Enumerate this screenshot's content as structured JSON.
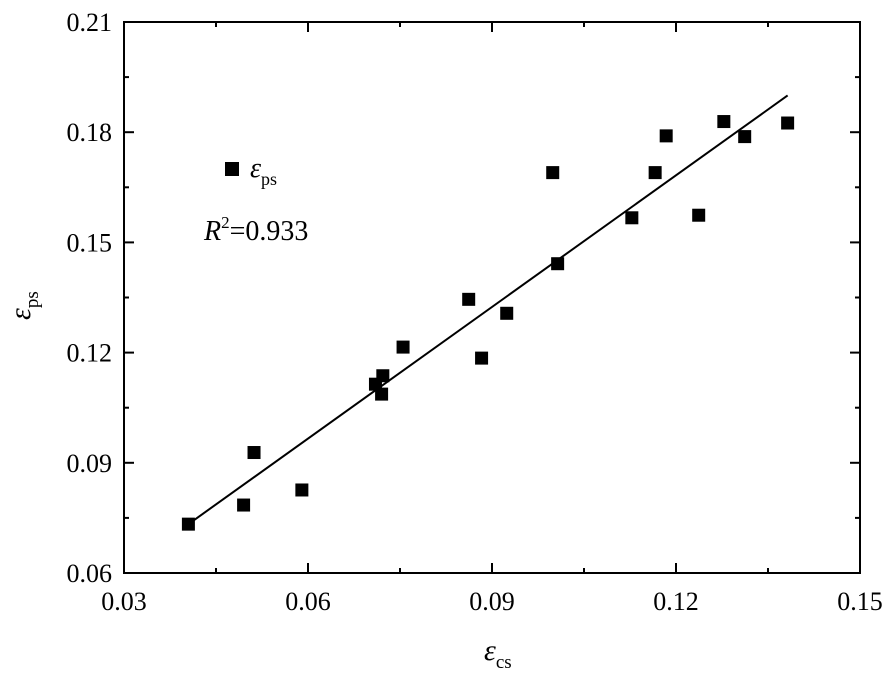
{
  "chart_data": {
    "type": "scatter",
    "xlabel": {
      "symbol": "ε",
      "subscript": "cs"
    },
    "ylabel": {
      "symbol": "ε",
      "subscript": "ps"
    },
    "xlim": [
      0.03,
      0.15
    ],
    "ylim": [
      0.06,
      0.21
    ],
    "x_ticks": [
      "0.03",
      "0.06",
      "0.09",
      "0.12",
      "0.15"
    ],
    "y_ticks": [
      "0.06",
      "0.09",
      "0.12",
      "0.15",
      "0.18",
      "0.21"
    ],
    "legend": {
      "symbol": "ε",
      "subscript": "ps",
      "position": "top-left"
    },
    "annotation": {
      "label": "R",
      "superscript": "2",
      "text": "=0.933"
    },
    "series": [
      {
        "name": "εps",
        "marker": "square",
        "color": "#000000",
        "points": [
          [
            0.0405,
            0.0733
          ],
          [
            0.0495,
            0.0785
          ],
          [
            0.0512,
            0.0928
          ],
          [
            0.059,
            0.0826
          ],
          [
            0.071,
            0.1114
          ],
          [
            0.072,
            0.1087
          ],
          [
            0.0722,
            0.1137
          ],
          [
            0.0755,
            0.1215
          ],
          [
            0.0862,
            0.1345
          ],
          [
            0.0883,
            0.1185
          ],
          [
            0.0924,
            0.1307
          ],
          [
            0.0999,
            0.169
          ],
          [
            0.1007,
            0.1442
          ],
          [
            0.1128,
            0.1567
          ],
          [
            0.1166,
            0.169
          ],
          [
            0.1184,
            0.179
          ],
          [
            0.1237,
            0.1574
          ],
          [
            0.1278,
            0.1829
          ],
          [
            0.1312,
            0.1788
          ],
          [
            0.1382,
            0.1825
          ]
        ]
      }
    ],
    "fit_line": {
      "x": [
        0.0405,
        0.1382
      ],
      "y": [
        0.0733,
        0.19
      ]
    },
    "grid": false
  }
}
